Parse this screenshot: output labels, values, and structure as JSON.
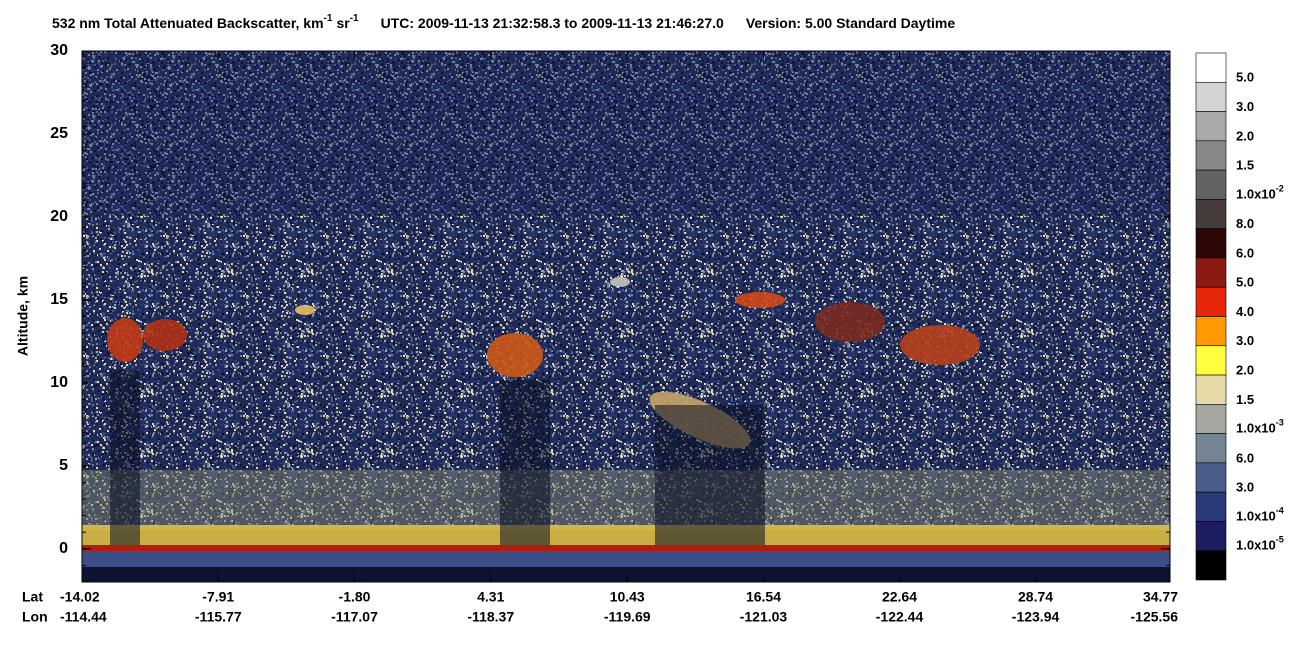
{
  "chart_data": {
    "type": "lidar-curtain",
    "title": {
      "text": "532 nm Total Attenuated Backscatter, km",
      "exp1": "-1",
      "unit2": "sr",
      "exp2": "-1",
      "utc": "UTC:  2009-11-13 21:32:58.3  to  2009-11-13 21:46:27.0",
      "version": "Version: 5.00  Standard  Daytime"
    },
    "y_label": "Altitude, km",
    "ylim": [
      -2,
      30
    ],
    "yticks": [
      0,
      5,
      10,
      15,
      20,
      25,
      30
    ],
    "x_row_labels": [
      "Lat",
      "Lon"
    ],
    "xlim": [
      -14.02,
      34.77
    ],
    "xticks": [
      -14.02,
      -7.91,
      {
        "value": -1.8,
        "label": "-1.80"
      },
      4.31,
      10.43,
      16.54,
      22.64,
      28.74,
      34.77
    ],
    "lon_labels": [
      -114.44,
      -115.77,
      -117.07,
      -118.37,
      -119.69,
      -121.03,
      -122.44,
      -123.94,
      -125.56
    ],
    "colorbar": {
      "colors": [
        "#ffffff",
        "#d4d4d4",
        "#a9a9a9",
        "#878787",
        "#636363",
        "#463c3a",
        "#2e0606",
        "#8b1a12",
        "#e8260a",
        "#ff9a00",
        "#ffff40",
        "#e8d9a8",
        "#a5a8a0",
        "#738494",
        "#4a5d88",
        "#2a3a78",
        "#1c1c60",
        "#000000"
      ],
      "labels": [
        "5.0",
        "3.0",
        "2.0",
        "1.5",
        {
          "base": "1.0x10",
          "exp": "-2"
        },
        "8.0",
        "6.0",
        "5.0",
        "4.0",
        "3.0",
        "2.0",
        "1.5",
        {
          "base": "1.0x10",
          "exp": "-3"
        },
        "6.0",
        "3.0",
        {
          "base": "1.0x10",
          "exp": "-4"
        },
        {
          "base": "1.0x10",
          "exp": "-5"
        }
      ]
    }
  }
}
